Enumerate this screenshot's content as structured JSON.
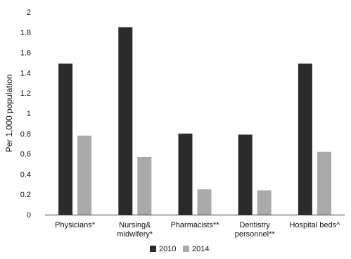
{
  "chart_data": {
    "type": "bar",
    "title": "",
    "xlabel": "",
    "ylabel": "Per 1,000 population",
    "ylim": [
      0,
      2
    ],
    "yticks": [
      "0",
      "0.2",
      "0.4",
      "0.6",
      "0.8",
      "1",
      "1.2",
      "1.4",
      "1.6",
      "1.8",
      "2"
    ],
    "categories": [
      [
        "Physicians*"
      ],
      [
        "Nursing&",
        "midwifery*"
      ],
      [
        "Pharmacists**"
      ],
      [
        "Dentistry",
        "personnel**"
      ],
      [
        "Hospital beds^"
      ]
    ],
    "series": [
      {
        "name": "2010",
        "color": "#2b2b2b",
        "values": [
          1.49,
          1.85,
          0.8,
          0.79,
          1.49
        ]
      },
      {
        "name": "2014",
        "color": "#aaaaaa",
        "values": [
          0.78,
          0.57,
          0.25,
          0.24,
          0.62
        ]
      }
    ],
    "grid": false,
    "legend_position": "bottom"
  }
}
